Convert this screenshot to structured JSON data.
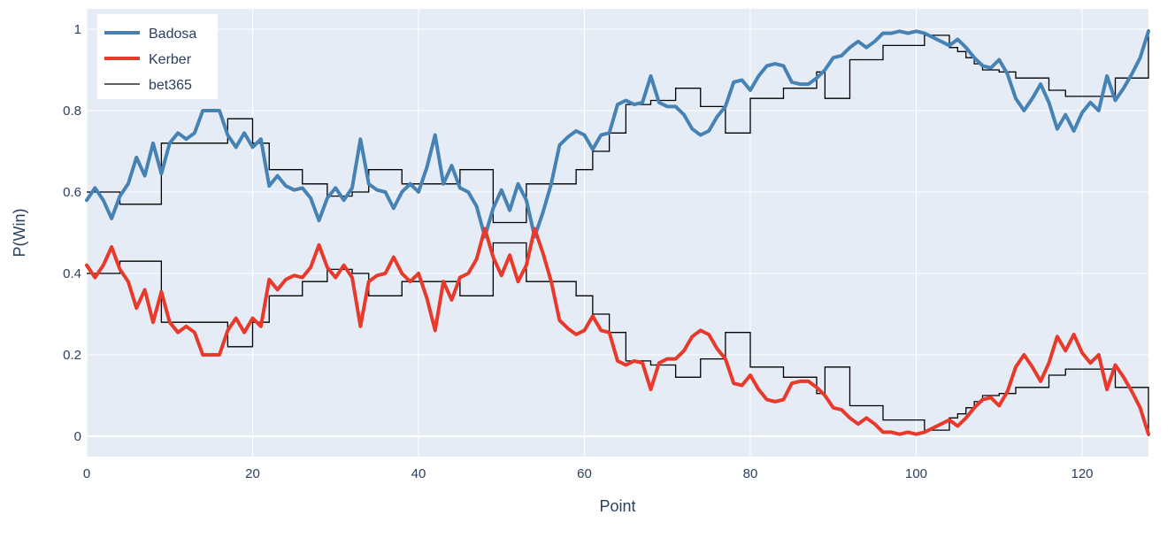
{
  "chart_data": {
    "type": "line",
    "xlabel": "Point",
    "ylabel": "P(Win)",
    "xlim": [
      0,
      128
    ],
    "ylim": [
      -0.05,
      1.05
    ],
    "x_ticks": [
      0,
      20,
      40,
      60,
      80,
      100,
      120
    ],
    "y_ticks": [
      0,
      0.2,
      0.4,
      0.6,
      0.8,
      1
    ],
    "y_tick_labels": [
      "0",
      "0.2",
      "0.4",
      "0.6",
      "0.8",
      "1"
    ],
    "grid": true,
    "legend_position": "top-left",
    "plot_bgcolor": "#e5ecf6",
    "series": [
      {
        "name": "Badosa",
        "color": "#4682b4",
        "shape": "linear",
        "x": [
          0,
          1,
          2,
          3,
          4,
          5,
          6,
          7,
          8,
          9,
          10,
          11,
          12,
          13,
          14,
          15,
          16,
          17,
          18,
          19,
          20,
          21,
          22,
          23,
          24,
          25,
          26,
          27,
          28,
          29,
          30,
          31,
          32,
          33,
          34,
          35,
          36,
          37,
          38,
          39,
          40,
          41,
          42,
          43,
          44,
          45,
          46,
          47,
          48,
          49,
          50,
          51,
          52,
          53,
          54,
          55,
          56,
          57,
          58,
          59,
          60,
          61,
          62,
          63,
          64,
          65,
          66,
          67,
          68,
          69,
          70,
          71,
          72,
          73,
          74,
          75,
          76,
          77,
          78,
          79,
          80,
          81,
          82,
          83,
          84,
          85,
          86,
          87,
          88,
          89,
          90,
          91,
          92,
          93,
          94,
          95,
          96,
          97,
          98,
          99,
          100,
          101,
          102,
          103,
          104,
          105,
          106,
          107,
          108,
          109,
          110,
          111,
          112,
          113,
          114,
          115,
          116,
          117,
          118,
          119,
          120,
          121,
          122,
          123,
          124,
          125,
          126,
          127,
          128
        ],
        "y": [
          0.58,
          0.61,
          0.58,
          0.535,
          0.59,
          0.62,
          0.685,
          0.64,
          0.72,
          0.645,
          0.72,
          0.745,
          0.73,
          0.745,
          0.8,
          0.8,
          0.8,
          0.74,
          0.71,
          0.745,
          0.71,
          0.73,
          0.615,
          0.64,
          0.615,
          0.605,
          0.61,
          0.585,
          0.53,
          0.585,
          0.61,
          0.58,
          0.61,
          0.73,
          0.62,
          0.605,
          0.6,
          0.56,
          0.6,
          0.62,
          0.6,
          0.66,
          0.74,
          0.62,
          0.665,
          0.61,
          0.6,
          0.565,
          0.49,
          0.56,
          0.605,
          0.555,
          0.62,
          0.58,
          0.49,
          0.55,
          0.62,
          0.715,
          0.735,
          0.75,
          0.74,
          0.705,
          0.74,
          0.745,
          0.815,
          0.825,
          0.815,
          0.82,
          0.885,
          0.82,
          0.81,
          0.81,
          0.79,
          0.755,
          0.74,
          0.75,
          0.785,
          0.81,
          0.87,
          0.875,
          0.85,
          0.885,
          0.91,
          0.915,
          0.91,
          0.87,
          0.865,
          0.865,
          0.88,
          0.9,
          0.93,
          0.935,
          0.955,
          0.97,
          0.955,
          0.97,
          0.99,
          0.99,
          0.995,
          0.99,
          0.995,
          0.99,
          0.98,
          0.97,
          0.96,
          0.975,
          0.955,
          0.93,
          0.91,
          0.905,
          0.925,
          0.89,
          0.83,
          0.8,
          0.83,
          0.865,
          0.82,
          0.755,
          0.79,
          0.75,
          0.795,
          0.82,
          0.8,
          0.885,
          0.825,
          0.855,
          0.89,
          0.93,
          0.995
        ]
      },
      {
        "name": "Kerber",
        "color": "#e8392b",
        "shape": "linear",
        "x": [
          0,
          1,
          2,
          3,
          4,
          5,
          6,
          7,
          8,
          9,
          10,
          11,
          12,
          13,
          14,
          15,
          16,
          17,
          18,
          19,
          20,
          21,
          22,
          23,
          24,
          25,
          26,
          27,
          28,
          29,
          30,
          31,
          32,
          33,
          34,
          35,
          36,
          37,
          38,
          39,
          40,
          41,
          42,
          43,
          44,
          45,
          46,
          47,
          48,
          49,
          50,
          51,
          52,
          53,
          54,
          55,
          56,
          57,
          58,
          59,
          60,
          61,
          62,
          63,
          64,
          65,
          66,
          67,
          68,
          69,
          70,
          71,
          72,
          73,
          74,
          75,
          76,
          77,
          78,
          79,
          80,
          81,
          82,
          83,
          84,
          85,
          86,
          87,
          88,
          89,
          90,
          91,
          92,
          93,
          94,
          95,
          96,
          97,
          98,
          99,
          100,
          101,
          102,
          103,
          104,
          105,
          106,
          107,
          108,
          109,
          110,
          111,
          112,
          113,
          114,
          115,
          116,
          117,
          118,
          119,
          120,
          121,
          122,
          123,
          124,
          125,
          126,
          127,
          128
        ],
        "y": [
          0.42,
          0.39,
          0.42,
          0.465,
          0.41,
          0.38,
          0.315,
          0.36,
          0.28,
          0.355,
          0.28,
          0.255,
          0.27,
          0.255,
          0.2,
          0.2,
          0.2,
          0.26,
          0.29,
          0.255,
          0.29,
          0.27,
          0.385,
          0.36,
          0.385,
          0.395,
          0.39,
          0.415,
          0.47,
          0.415,
          0.39,
          0.42,
          0.39,
          0.27,
          0.38,
          0.395,
          0.4,
          0.44,
          0.4,
          0.38,
          0.4,
          0.34,
          0.26,
          0.38,
          0.335,
          0.39,
          0.4,
          0.435,
          0.51,
          0.44,
          0.395,
          0.445,
          0.38,
          0.42,
          0.51,
          0.45,
          0.38,
          0.285,
          0.265,
          0.25,
          0.26,
          0.295,
          0.26,
          0.255,
          0.185,
          0.175,
          0.185,
          0.18,
          0.115,
          0.18,
          0.19,
          0.19,
          0.21,
          0.245,
          0.26,
          0.25,
          0.215,
          0.19,
          0.13,
          0.125,
          0.15,
          0.115,
          0.09,
          0.085,
          0.09,
          0.13,
          0.135,
          0.135,
          0.12,
          0.1,
          0.07,
          0.065,
          0.045,
          0.03,
          0.045,
          0.03,
          0.01,
          0.01,
          0.005,
          0.01,
          0.005,
          0.01,
          0.02,
          0.03,
          0.04,
          0.025,
          0.045,
          0.07,
          0.09,
          0.095,
          0.075,
          0.11,
          0.17,
          0.2,
          0.17,
          0.135,
          0.18,
          0.245,
          0.21,
          0.25,
          0.205,
          0.18,
          0.2,
          0.115,
          0.175,
          0.145,
          0.11,
          0.07,
          0.005
        ]
      },
      {
        "name": "bet365",
        "color": "#000000",
        "shape": "hv",
        "segments": [
          {
            "x": [
              0,
              4,
              9,
              17,
              20,
              22,
              26,
              29,
              32,
              34,
              38,
              42,
              45,
              49,
              53,
              56,
              59,
              61,
              63,
              65,
              68,
              71,
              74,
              77,
              79,
              80,
              84,
              88,
              89,
              92,
              96,
              101,
              104,
              105,
              106,
              107,
              108,
              110,
              112,
              116,
              118,
              123,
              124,
              126,
              128
            ],
            "y": [
              0.6,
              0.57,
              0.72,
              0.78,
              0.72,
              0.655,
              0.62,
              0.59,
              0.6,
              0.655,
              0.62,
              0.62,
              0.655,
              0.525,
              0.62,
              0.62,
              0.655,
              0.7,
              0.745,
              0.815,
              0.825,
              0.855,
              0.81,
              0.745,
              0.745,
              0.83,
              0.855,
              0.895,
              0.83,
              0.925,
              0.96,
              0.985,
              0.955,
              0.945,
              0.93,
              0.915,
              0.9,
              0.895,
              0.88,
              0.85,
              0.835,
              0.835,
              0.88,
              0.88,
              1.0
            ]
          },
          {
            "x": [
              0,
              4,
              9,
              17,
              20,
              22,
              26,
              29,
              32,
              34,
              38,
              42,
              45,
              49,
              53,
              56,
              59,
              61,
              63,
              65,
              68,
              71,
              74,
              77,
              79,
              80,
              84,
              88,
              89,
              92,
              96,
              101,
              104,
              105,
              106,
              107,
              108,
              110,
              112,
              116,
              118,
              123,
              124,
              126,
              128
            ],
            "y": [
              0.4,
              0.43,
              0.28,
              0.22,
              0.28,
              0.345,
              0.38,
              0.41,
              0.4,
              0.345,
              0.38,
              0.38,
              0.345,
              0.475,
              0.38,
              0.38,
              0.345,
              0.3,
              0.255,
              0.185,
              0.175,
              0.145,
              0.19,
              0.255,
              0.255,
              0.17,
              0.145,
              0.105,
              0.17,
              0.075,
              0.04,
              0.015,
              0.045,
              0.055,
              0.07,
              0.085,
              0.1,
              0.105,
              0.12,
              0.15,
              0.165,
              0.165,
              0.12,
              0.12,
              0.0
            ]
          }
        ]
      }
    ]
  }
}
